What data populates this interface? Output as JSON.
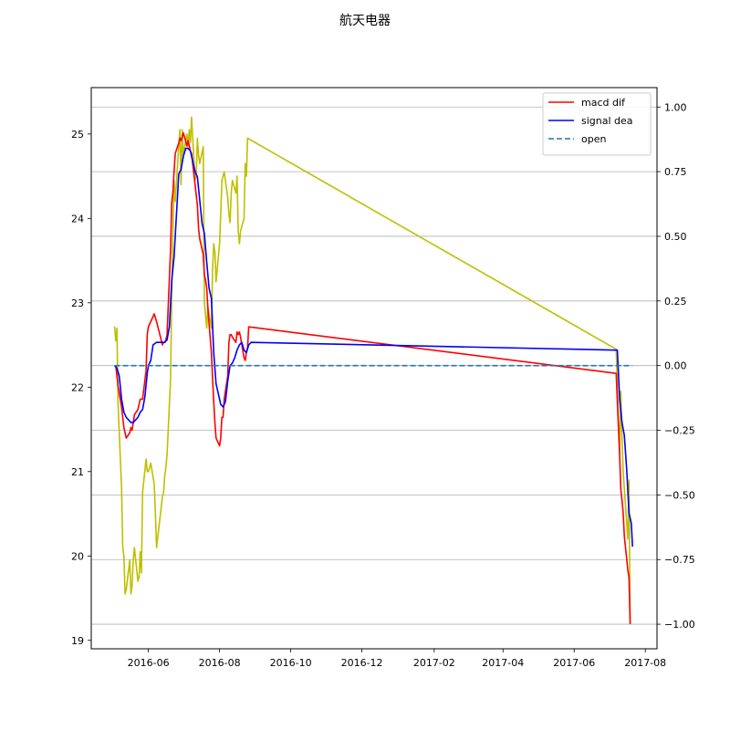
{
  "chart_data": {
    "type": "line",
    "title": "航天电器",
    "grid": "horizontal (right axis)",
    "legend_position": "top-right",
    "x_axis": {
      "min": "2016-04-13",
      "max": "2017-08-11",
      "ticks": [
        {
          "date": "2016-06-01",
          "label": "2016-06"
        },
        {
          "date": "2016-08-01",
          "label": "2016-08"
        },
        {
          "date": "2016-10-01",
          "label": "2016-10"
        },
        {
          "date": "2016-12-01",
          "label": "2016-12"
        },
        {
          "date": "2017-02-01",
          "label": "2017-02"
        },
        {
          "date": "2017-04-01",
          "label": "2017-04"
        },
        {
          "date": "2017-06-01",
          "label": "2017-06"
        },
        {
          "date": "2017-08-01",
          "label": "2017-08"
        }
      ]
    },
    "left_axis": {
      "min": 18.9,
      "max": 25.55,
      "ticks": [
        {
          "value": 19,
          "label": "19"
        },
        {
          "value": 20,
          "label": "20"
        },
        {
          "value": 21,
          "label": "21"
        },
        {
          "value": 22,
          "label": "22"
        },
        {
          "value": 23,
          "label": "23"
        },
        {
          "value": 24,
          "label": "24"
        },
        {
          "value": 25,
          "label": "25"
        }
      ]
    },
    "right_axis": {
      "min": -1.095,
      "max": 1.075,
      "ticks": [
        {
          "value": -1.0,
          "label": "−1.00"
        },
        {
          "value": -0.75,
          "label": "−0.75"
        },
        {
          "value": -0.5,
          "label": "−0.50"
        },
        {
          "value": -0.25,
          "label": "−0.25"
        },
        {
          "value": 0.0,
          "label": "0.00"
        },
        {
          "value": 0.25,
          "label": "0.25"
        },
        {
          "value": 0.5,
          "label": "0.50"
        },
        {
          "value": 0.75,
          "label": "0.75"
        },
        {
          "value": 1.0,
          "label": "1.00"
        }
      ]
    },
    "series": [
      {
        "key": "price",
        "axis": "left",
        "color": "#bfbf00",
        "style": "solid",
        "points": [
          [
            "2016-05-03",
            22.72
          ],
          [
            "2016-05-04",
            22.55
          ],
          [
            "2016-05-05",
            22.7
          ],
          [
            "2016-05-06",
            21.8
          ],
          [
            "2016-05-09",
            20.8
          ],
          [
            "2016-05-10",
            20.1
          ],
          [
            "2016-05-11",
            20.0
          ],
          [
            "2016-05-12",
            19.55
          ],
          [
            "2016-05-13",
            19.6
          ],
          [
            "2016-05-16",
            19.95
          ],
          [
            "2016-05-17",
            19.55
          ],
          [
            "2016-05-18",
            19.65
          ],
          [
            "2016-05-19",
            19.95
          ],
          [
            "2016-05-20",
            20.1
          ],
          [
            "2016-05-23",
            19.7
          ],
          [
            "2016-05-24",
            19.75
          ],
          [
            "2016-05-25",
            20.05
          ],
          [
            "2016-05-26",
            19.8
          ],
          [
            "2016-05-27",
            20.75
          ],
          [
            "2016-05-30",
            21.15
          ],
          [
            "2016-05-31",
            21.0
          ],
          [
            "2016-06-01",
            21.0
          ],
          [
            "2016-06-02",
            21.05
          ],
          [
            "2016-06-03",
            21.1
          ],
          [
            "2016-06-06",
            20.85
          ],
          [
            "2016-06-07",
            20.5
          ],
          [
            "2016-06-08",
            20.1
          ],
          [
            "2016-06-13",
            20.7
          ],
          [
            "2016-06-14",
            20.75
          ],
          [
            "2016-06-15",
            20.95
          ],
          [
            "2016-06-16",
            21.05
          ],
          [
            "2016-06-17",
            21.2
          ],
          [
            "2016-06-20",
            22.1
          ],
          [
            "2016-06-21",
            23.1
          ],
          [
            "2016-06-22",
            23.85
          ],
          [
            "2016-06-23",
            24.45
          ],
          [
            "2016-06-24",
            24.2
          ],
          [
            "2016-06-27",
            24.85
          ],
          [
            "2016-06-28",
            25.05
          ],
          [
            "2016-06-29",
            24.4
          ],
          [
            "2016-06-30",
            25.05
          ],
          [
            "2016-07-01",
            24.75
          ],
          [
            "2016-07-04",
            25.0
          ],
          [
            "2016-07-05",
            24.85
          ],
          [
            "2016-07-06",
            25.05
          ],
          [
            "2016-07-07",
            24.9
          ],
          [
            "2016-07-08",
            25.2
          ],
          [
            "2016-07-11",
            24.45
          ],
          [
            "2016-07-12",
            24.5
          ],
          [
            "2016-07-13",
            24.95
          ],
          [
            "2016-07-14",
            24.75
          ],
          [
            "2016-07-15",
            24.65
          ],
          [
            "2016-07-18",
            24.85
          ],
          [
            "2016-07-19",
            23.0
          ],
          [
            "2016-07-20",
            22.85
          ],
          [
            "2016-07-21",
            22.7
          ],
          [
            "2016-07-22",
            22.95
          ],
          [
            "2016-07-25",
            22.7
          ],
          [
            "2016-07-26",
            23.4
          ],
          [
            "2016-07-27",
            23.7
          ],
          [
            "2016-07-28",
            23.6
          ],
          [
            "2016-07-29",
            23.25
          ],
          [
            "2016-08-01",
            23.7
          ],
          [
            "2016-08-02",
            24.05
          ],
          [
            "2016-08-03",
            24.45
          ],
          [
            "2016-08-04",
            24.5
          ],
          [
            "2016-08-05",
            24.55
          ],
          [
            "2016-08-08",
            24.25
          ],
          [
            "2016-08-09",
            24.05
          ],
          [
            "2016-08-10",
            23.95
          ],
          [
            "2016-08-11",
            24.3
          ],
          [
            "2016-08-12",
            24.45
          ],
          [
            "2016-08-15",
            24.3
          ],
          [
            "2016-08-16",
            24.5
          ],
          [
            "2016-08-17",
            23.85
          ],
          [
            "2016-08-18",
            23.7
          ],
          [
            "2016-08-19",
            23.85
          ],
          [
            "2016-08-22",
            24.0
          ],
          [
            "2016-08-23",
            24.65
          ],
          [
            "2016-08-24",
            24.5
          ],
          [
            "2016-08-25",
            24.95
          ],
          [
            "2017-07-07",
            22.45
          ],
          [
            "2017-07-10",
            21.2
          ],
          [
            "2017-07-11",
            21.95
          ],
          [
            "2017-07-12",
            21.4
          ],
          [
            "2017-07-13",
            21.0
          ],
          [
            "2017-07-14",
            20.8
          ],
          [
            "2017-07-17",
            20.2
          ],
          [
            "2017-07-18",
            20.9
          ],
          [
            "2017-07-19",
            19.2
          ]
        ]
      },
      {
        "key": "dif",
        "name": "macd dif",
        "axis": "right",
        "color": "#ff0000",
        "style": "solid",
        "points": [
          [
            "2016-05-04",
            0.0
          ],
          [
            "2016-05-06",
            -0.08
          ],
          [
            "2016-05-09",
            -0.16
          ],
          [
            "2016-05-11",
            -0.24
          ],
          [
            "2016-05-13",
            -0.28
          ],
          [
            "2016-05-16",
            -0.26
          ],
          [
            "2016-05-17",
            -0.24
          ],
          [
            "2016-05-18",
            -0.25
          ],
          [
            "2016-05-20",
            -0.19
          ],
          [
            "2016-05-23",
            -0.17
          ],
          [
            "2016-05-25",
            -0.13
          ],
          [
            "2016-05-27",
            -0.13
          ],
          [
            "2016-05-30",
            -0.02
          ],
          [
            "2016-05-31",
            0.12
          ],
          [
            "2016-06-01",
            0.15
          ],
          [
            "2016-06-03",
            0.17
          ],
          [
            "2016-06-06",
            0.2
          ],
          [
            "2016-06-08",
            0.17
          ],
          [
            "2016-06-13",
            0.08
          ],
          [
            "2016-06-14",
            0.09
          ],
          [
            "2016-06-15",
            0.09
          ],
          [
            "2016-06-16",
            0.1
          ],
          [
            "2016-06-17",
            0.12
          ],
          [
            "2016-06-20",
            0.45
          ],
          [
            "2016-06-21",
            0.63
          ],
          [
            "2016-06-22",
            0.67
          ],
          [
            "2016-06-23",
            0.75
          ],
          [
            "2016-06-24",
            0.82
          ],
          [
            "2016-06-27",
            0.86
          ],
          [
            "2016-06-28",
            0.88
          ],
          [
            "2016-06-29",
            0.87
          ],
          [
            "2016-07-01",
            0.9
          ],
          [
            "2016-07-04",
            0.85
          ],
          [
            "2016-07-05",
            0.87
          ],
          [
            "2016-07-06",
            0.85
          ],
          [
            "2016-07-07",
            0.83
          ],
          [
            "2016-07-08",
            0.82
          ],
          [
            "2016-07-11",
            0.7
          ],
          [
            "2016-07-12",
            0.66
          ],
          [
            "2016-07-13",
            0.62
          ],
          [
            "2016-07-14",
            0.53
          ],
          [
            "2016-07-15",
            0.49
          ],
          [
            "2016-07-18",
            0.43
          ],
          [
            "2016-07-19",
            0.35
          ],
          [
            "2016-07-20",
            0.33
          ],
          [
            "2016-07-21",
            0.3
          ],
          [
            "2016-07-22",
            0.22
          ],
          [
            "2016-07-25",
            0.05
          ],
          [
            "2016-07-26",
            -0.05
          ],
          [
            "2016-07-27",
            -0.14
          ],
          [
            "2016-07-28",
            -0.22
          ],
          [
            "2016-07-29",
            -0.28
          ],
          [
            "2016-08-01",
            -0.31
          ],
          [
            "2016-08-02",
            -0.28
          ],
          [
            "2016-08-03",
            -0.2
          ],
          [
            "2016-08-04",
            -0.2
          ],
          [
            "2016-08-05",
            -0.13
          ],
          [
            "2016-08-08",
            -0.04
          ],
          [
            "2016-08-09",
            0.09
          ],
          [
            "2016-08-10",
            0.12
          ],
          [
            "2016-08-11",
            0.12
          ],
          [
            "2016-08-12",
            0.11
          ],
          [
            "2016-08-15",
            0.09
          ],
          [
            "2016-08-16",
            0.13
          ],
          [
            "2016-08-17",
            0.12
          ],
          [
            "2016-08-18",
            0.13
          ],
          [
            "2016-08-19",
            0.11
          ],
          [
            "2016-08-22",
            0.03
          ],
          [
            "2016-08-23",
            0.02
          ],
          [
            "2016-08-24",
            0.05
          ],
          [
            "2016-08-25",
            0.07
          ],
          [
            "2016-08-26",
            0.15
          ],
          [
            "2017-07-07",
            -0.03
          ],
          [
            "2017-07-10",
            -0.35
          ],
          [
            "2017-07-11",
            -0.48
          ],
          [
            "2017-07-12",
            -0.52
          ],
          [
            "2017-07-13",
            -0.57
          ],
          [
            "2017-07-14",
            -0.66
          ],
          [
            "2017-07-17",
            -0.79
          ],
          [
            "2017-07-18",
            -0.82
          ],
          [
            "2017-07-19",
            -1.0
          ]
        ]
      },
      {
        "key": "dea",
        "name": "signal dea",
        "axis": "right",
        "color": "#0000ff",
        "style": "solid",
        "points": [
          [
            "2016-05-03",
            0.0
          ],
          [
            "2016-05-05",
            -0.01
          ],
          [
            "2016-05-07",
            -0.04
          ],
          [
            "2016-05-09",
            -0.13
          ],
          [
            "2016-05-11",
            -0.18
          ],
          [
            "2016-05-13",
            -0.2
          ],
          [
            "2016-05-15",
            -0.21
          ],
          [
            "2016-05-17",
            -0.22
          ],
          [
            "2016-05-19",
            -0.22
          ],
          [
            "2016-05-21",
            -0.21
          ],
          [
            "2016-05-23",
            -0.2
          ],
          [
            "2016-05-25",
            -0.18
          ],
          [
            "2016-05-27",
            -0.17
          ],
          [
            "2016-05-29",
            -0.12
          ],
          [
            "2016-05-31",
            -0.03
          ],
          [
            "2016-06-01",
            0.0
          ],
          [
            "2016-06-03",
            0.02
          ],
          [
            "2016-06-05",
            0.08
          ],
          [
            "2016-06-08",
            0.09
          ],
          [
            "2016-06-13",
            0.09
          ],
          [
            "2016-06-15",
            0.09
          ],
          [
            "2016-06-17",
            0.1
          ],
          [
            "2016-06-19",
            0.15
          ],
          [
            "2016-06-21",
            0.33
          ],
          [
            "2016-06-23",
            0.42
          ],
          [
            "2016-06-25",
            0.58
          ],
          [
            "2016-06-27",
            0.74
          ],
          [
            "2016-06-29",
            0.76
          ],
          [
            "2016-07-01",
            0.81
          ],
          [
            "2016-07-03",
            0.84
          ],
          [
            "2016-07-05",
            0.84
          ],
          [
            "2016-07-07",
            0.83
          ],
          [
            "2016-07-09",
            0.79
          ],
          [
            "2016-07-11",
            0.75
          ],
          [
            "2016-07-13",
            0.73
          ],
          [
            "2016-07-15",
            0.64
          ],
          [
            "2016-07-17",
            0.55
          ],
          [
            "2016-07-19",
            0.51
          ],
          [
            "2016-07-21",
            0.4
          ],
          [
            "2016-07-23",
            0.3
          ],
          [
            "2016-07-25",
            0.26
          ],
          [
            "2016-07-27",
            0.05
          ],
          [
            "2016-07-29",
            -0.07
          ],
          [
            "2016-07-31",
            -0.11
          ],
          [
            "2016-08-02",
            -0.15
          ],
          [
            "2016-08-04",
            -0.16
          ],
          [
            "2016-08-06",
            -0.14
          ],
          [
            "2016-08-08",
            -0.06
          ],
          [
            "2016-08-10",
            0.0
          ],
          [
            "2016-08-12",
            0.01
          ],
          [
            "2016-08-14",
            0.03
          ],
          [
            "2016-08-16",
            0.06
          ],
          [
            "2016-08-18",
            0.08
          ],
          [
            "2016-08-20",
            0.09
          ],
          [
            "2016-08-22",
            0.06
          ],
          [
            "2016-08-24",
            0.05
          ],
          [
            "2016-08-26",
            0.08
          ],
          [
            "2016-08-28",
            0.09
          ],
          [
            "2017-07-06",
            0.06
          ],
          [
            "2017-07-08",
            0.06
          ],
          [
            "2017-07-10",
            -0.13
          ],
          [
            "2017-07-12",
            -0.22
          ],
          [
            "2017-07-14",
            -0.27
          ],
          [
            "2017-07-16",
            -0.4
          ],
          [
            "2017-07-18",
            -0.57
          ],
          [
            "2017-07-20",
            -0.61
          ],
          [
            "2017-07-21",
            -0.7
          ]
        ]
      },
      {
        "key": "open",
        "name": "open",
        "axis": "right",
        "color": "#1f77b4",
        "style": "dashed",
        "points": [
          [
            "2016-05-03",
            0.0
          ],
          [
            "2017-07-21",
            0.0
          ]
        ]
      }
    ]
  }
}
